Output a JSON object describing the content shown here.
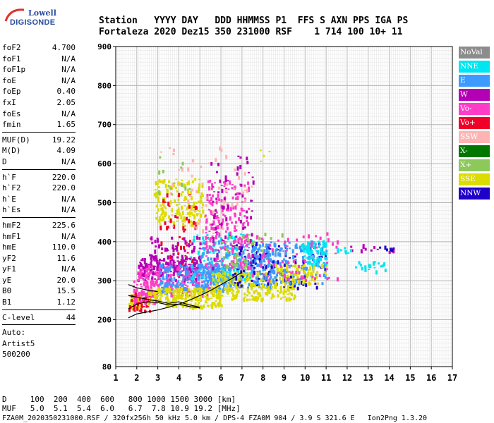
{
  "logo": {
    "line1": "Lowell",
    "line2": "DIGISONDE"
  },
  "header": {
    "line1": "Station   YYYY DAY   DDD HHMMSS P1  FFS S AXN PPS IGA PS",
    "line2": "Fortaleza 2020 Dez15 350 231000 RSF    1 714 100 10+ 11"
  },
  "params": [
    [
      [
        "foF2",
        "4.700"
      ],
      [
        "foF1",
        "N/A"
      ],
      [
        "foF1p",
        "N/A"
      ],
      [
        "foE",
        "N/A"
      ],
      [
        "foEp",
        "0.40"
      ],
      [
        "fxI",
        "2.05"
      ],
      [
        "foEs",
        "N/A"
      ],
      [
        "fmin",
        "1.65"
      ]
    ],
    [
      [
        "MUF(D)",
        "19.22"
      ],
      [
        "M(D)",
        "4.09"
      ],
      [
        "D",
        "N/A"
      ]
    ],
    [
      [
        "h`F",
        "220.0"
      ],
      [
        "h`F2",
        "220.0"
      ],
      [
        "h`E",
        "N/A"
      ],
      [
        "h`Es",
        "N/A"
      ]
    ],
    [
      [
        "hmF2",
        "225.6"
      ],
      [
        "hmF1",
        "N/A"
      ],
      [
        "hmE",
        "110.0"
      ],
      [
        "yF2",
        "11.6"
      ],
      [
        "yF1",
        "N/A"
      ],
      [
        "yE",
        "20.0"
      ],
      [
        "B0",
        "15.5"
      ],
      [
        "B1",
        "1.12"
      ]
    ],
    [
      [
        "C-level",
        "44"
      ]
    ]
  ],
  "auto": {
    "line1": "Auto:",
    "line2": "Artist5",
    "line3": "500200"
  },
  "legend": [
    {
      "label": "NoVal",
      "color": "#8c8c8c"
    },
    {
      "label": "NNE",
      "color": "#00e6f0"
    },
    {
      "label": "E",
      "color": "#3d9aff"
    },
    {
      "label": "W",
      "color": "#b400b4"
    },
    {
      "label": "Vo-",
      "color": "#ff3cc8"
    },
    {
      "label": "Vo+",
      "color": "#f00028"
    },
    {
      "label": "SSW",
      "color": "#ffb4b4"
    },
    {
      "label": "X-",
      "color": "#007800"
    },
    {
      "label": "X+",
      "color": "#8cc85a"
    },
    {
      "label": "SSE",
      "color": "#dcdc00"
    },
    {
      "label": "NNW",
      "color": "#1e00c8"
    }
  ],
  "footer": {
    "d_line": "D     100  200  400  600   800 1000 1500 3000 [km]",
    "muf_line": "MUF   5.0  5.1  5.4  6.0   6.7  7.8 10.9 19.2 [MHz]",
    "file_line": "FZA0M_2020350231000.RSF / 320fx256h 50 kHz 5.0 km / DPS-4 FZA0M 904 / 3.9 S 321.6 E   Ion2Png 1.3.20"
  },
  "chart_data": {
    "type": "scatter",
    "xlim": [
      1,
      17
    ],
    "ylim": [
      80,
      900
    ],
    "x_ticks": [
      "1",
      "2",
      "3",
      "4",
      "5",
      "6",
      "7",
      "8",
      "9",
      "10",
      "11",
      "12",
      "13",
      "14",
      "15",
      "16",
      "17"
    ],
    "y_ticks": [
      {
        "v": 200,
        "label": "200"
      },
      {
        "v": 300,
        "label": "300"
      },
      {
        "v": 400,
        "label": "400"
      },
      {
        "v": 500,
        "label": "500"
      },
      {
        "v": 600,
        "label": "600"
      },
      {
        "v": 700,
        "label": "700"
      },
      {
        "v": 800,
        "label": "800"
      },
      {
        "v": 900,
        "label": "900"
      }
    ],
    "y_major_positions": [
      80,
      200,
      300,
      400,
      500,
      600,
      700,
      800,
      900
    ],
    "grid": true,
    "clusters": [
      {
        "color": "SSE",
        "x": [
          1.6,
          2.2
        ],
        "y": [
          225,
          265
        ],
        "n": 60
      },
      {
        "color": "Vo+",
        "x": [
          1.6,
          2.6
        ],
        "y": [
          220,
          270
        ],
        "n": 50
      },
      {
        "color": "Vo-",
        "x": [
          1.8,
          3.0
        ],
        "y": [
          240,
          300
        ],
        "n": 60
      },
      {
        "color": "W",
        "x": [
          2.0,
          5.0
        ],
        "y": [
          300,
          360
        ],
        "n": 180
      },
      {
        "color": "Vo-",
        "x": [
          2.0,
          5.5
        ],
        "y": [
          260,
          340
        ],
        "n": 200
      },
      {
        "color": "E",
        "x": [
          3.0,
          6.5
        ],
        "y": [
          270,
          340
        ],
        "n": 220
      },
      {
        "color": "SSE",
        "x": [
          2.5,
          6.0
        ],
        "y": [
          230,
          280
        ],
        "n": 220
      },
      {
        "color": "SSE",
        "x": [
          2.8,
          5.2
        ],
        "y": [
          440,
          560
        ],
        "n": 160
      },
      {
        "color": "Vo+",
        "x": [
          3.0,
          4.8
        ],
        "y": [
          340,
          520
        ],
        "n": 50
      },
      {
        "color": "NNE",
        "x": [
          4.5,
          7.5
        ],
        "y": [
          300,
          420
        ],
        "n": 120
      },
      {
        "color": "E",
        "x": [
          5.0,
          8.5
        ],
        "y": [
          280,
          400
        ],
        "n": 240
      },
      {
        "color": "Vo-",
        "x": [
          5.2,
          7.3
        ],
        "y": [
          330,
          560
        ],
        "n": 180
      },
      {
        "color": "W",
        "x": [
          5.5,
          7.5
        ],
        "y": [
          330,
          620
        ],
        "n": 70
      },
      {
        "color": "SSE",
        "x": [
          5.5,
          9.5
        ],
        "y": [
          250,
          320
        ],
        "n": 240
      },
      {
        "color": "SSW",
        "x": [
          3.0,
          7.5
        ],
        "y": [
          420,
          650
        ],
        "n": 60
      },
      {
        "color": "NNW",
        "x": [
          6.5,
          11.0
        ],
        "y": [
          280,
          400
        ],
        "n": 110
      },
      {
        "color": "X+",
        "x": [
          6.0,
          9.0
        ],
        "y": [
          300,
          420
        ],
        "n": 60
      },
      {
        "color": "E",
        "x": [
          7.5,
          11.0
        ],
        "y": [
          290,
          400
        ],
        "n": 160
      },
      {
        "color": "SSE",
        "x": [
          8.5,
          11.0
        ],
        "y": [
          290,
          340
        ],
        "n": 70
      },
      {
        "color": "NNE",
        "x": [
          9.8,
          11.0
        ],
        "y": [
          340,
          400
        ],
        "n": 70
      },
      {
        "color": "Vo-",
        "x": [
          7.0,
          11.5
        ],
        "y": [
          300,
          420
        ],
        "n": 70
      },
      {
        "color": "NNE",
        "x": [
          12.3,
          13.8
        ],
        "y": [
          320,
          350
        ],
        "n": 22
      },
      {
        "color": "W",
        "x": [
          12.0,
          14.2
        ],
        "y": [
          370,
          390
        ],
        "n": 14
      },
      {
        "color": "NNW",
        "x": [
          13.5,
          14.2
        ],
        "y": [
          375,
          385
        ],
        "n": 6
      },
      {
        "color": "NNE",
        "x": [
          11.5,
          12.2
        ],
        "y": [
          370,
          385
        ],
        "n": 8
      },
      {
        "color": "W",
        "x": [
          2.5,
          5.0
        ],
        "y": [
          330,
          410
        ],
        "n": 60
      },
      {
        "color": "X+",
        "x": [
          3.0,
          4.5
        ],
        "y": [
          520,
          620
        ],
        "n": 14
      },
      {
        "color": "SSE",
        "x": [
          7.8,
          8.3
        ],
        "y": [
          600,
          640
        ],
        "n": 4
      }
    ],
    "traces": [
      {
        "x": [
          1.6,
          2.0,
          2.5,
          3.0,
          3.5,
          4.0,
          4.5,
          5.0,
          5.5,
          6.0,
          6.5,
          7.0
        ],
        "y": [
          205,
          215,
          220,
          225,
          232,
          240,
          250,
          262,
          275,
          290,
          305,
          322
        ]
      },
      {
        "x": [
          1.6,
          2.0,
          2.5,
          3.0,
          3.5,
          4.0,
          4.5,
          5.0
        ],
        "y": [
          228,
          240,
          246,
          244,
          238,
          240,
          234,
          230
        ]
      },
      {
        "x": [
          1.6,
          2.0,
          2.5,
          3.0,
          3.5,
          4.0,
          4.5,
          5.0
        ],
        "y": [
          262,
          258,
          252,
          248,
          242,
          246,
          238,
          232
        ]
      },
      {
        "x": [
          1.6,
          2.0,
          2.5,
          3.0
        ],
        "y": [
          290,
          282,
          276,
          272
        ]
      }
    ]
  }
}
